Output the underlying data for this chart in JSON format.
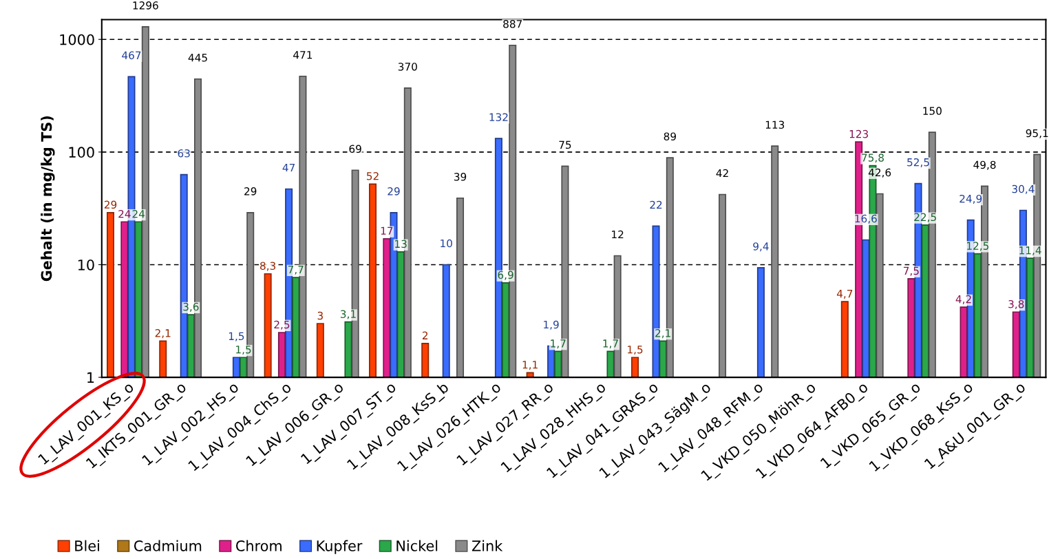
{
  "chart_data": {
    "type": "bar",
    "ylabel": "Gehalt (in mg/kg TS)",
    "log": true,
    "ylim": [
      1,
      1500
    ],
    "yticks": [
      1,
      10,
      100,
      1000
    ],
    "grid": "y",
    "legend": "bottom",
    "data_labels": true,
    "categories": [
      "1_LAV_001_KS_o",
      "1_IKTS_001_GR_o",
      "1_LAV_002_HS_o",
      "1_LAV_004_ChS_o",
      "1_LAV_006_GR_o",
      "1_LAV_007_ST_o",
      "1_LAV_008_KsS_b",
      "1_LAV_026_HTK_o",
      "1_LAV_027_RR_o",
      "1_LAV_028_HHS_o",
      "1_LAV_041_GRAS_o",
      "1_LAV_043_SägM_o",
      "1_LAV_048_RFM_o",
      "1_VKD_050_MöhR_o",
      "1_VKD_064_AFB0_o",
      "1_VKD_065_GR_o",
      "1_VKD_068_KsS_o",
      "1_A&U_001_GR_o"
    ],
    "series": [
      {
        "name": "Blei",
        "color": "#ff4000",
        "values": [
          29,
          2.1,
          null,
          8.3,
          3,
          52,
          2,
          null,
          1.1,
          null,
          1.5,
          null,
          null,
          null,
          4.7,
          null,
          null,
          null
        ],
        "value_labels": [
          "29",
          "2,1",
          null,
          "8,3",
          "3",
          "52",
          "2",
          null,
          "1,1",
          null,
          "1,5",
          null,
          null,
          null,
          "4,7",
          null,
          null,
          null
        ]
      },
      {
        "name": "Cadmium",
        "color": "#b07818",
        "values": [
          null,
          null,
          null,
          null,
          null,
          null,
          null,
          null,
          null,
          null,
          null,
          null,
          null,
          null,
          null,
          null,
          null,
          null
        ],
        "value_labels": [
          null,
          null,
          null,
          null,
          null,
          null,
          null,
          null,
          null,
          null,
          null,
          null,
          null,
          null,
          null,
          null,
          null,
          null
        ]
      },
      {
        "name": "Chrom",
        "color": "#e0208a",
        "values": [
          24,
          null,
          null,
          2.5,
          null,
          17,
          null,
          null,
          null,
          null,
          null,
          null,
          null,
          null,
          123,
          7.5,
          4.2,
          3.8
        ],
        "value_labels": [
          "24",
          null,
          null,
          "2,5",
          null,
          "17",
          null,
          null,
          null,
          null,
          null,
          null,
          null,
          null,
          "123",
          "7,5",
          "4,2",
          "3,8"
        ]
      },
      {
        "name": "Kupfer",
        "color": "#3a6cff",
        "values": [
          467,
          63,
          1.5,
          47,
          null,
          29,
          10,
          132,
          1.9,
          null,
          22,
          null,
          9.4,
          null,
          16.6,
          52.5,
          24.9,
          30.4
        ],
        "value_labels": [
          "467",
          "63",
          "1,5",
          "47",
          null,
          "29",
          "10",
          "132",
          "1,9",
          null,
          "22",
          null,
          "9,4",
          null,
          "16,6",
          "52,5",
          "24,9",
          "30,4"
        ]
      },
      {
        "name": "Nickel",
        "color": "#2aa84a",
        "values": [
          24,
          3.6,
          1.5,
          7.7,
          3.1,
          13,
          null,
          6.9,
          1.7,
          1.7,
          2.1,
          null,
          null,
          null,
          75.8,
          22.5,
          12.5,
          11.4
        ],
        "value_labels": [
          "24",
          "3,6",
          "1,5",
          "7,7",
          "3,1",
          "13",
          null,
          "6,9",
          "1,7",
          "1,7",
          "2,1",
          null,
          null,
          null,
          "75,8",
          "22,5",
          "12,5",
          "11,4"
        ]
      },
      {
        "name": "Zink",
        "color": "#8a8a8a",
        "values": [
          1296,
          445,
          29,
          471,
          69,
          370,
          39,
          887,
          75,
          12,
          89,
          42,
          113,
          null,
          42.6,
          150,
          49.8,
          95.1
        ],
        "value_labels": [
          "1296",
          "445",
          "29",
          "471",
          "69",
          "370",
          "39",
          "887",
          "75",
          "12",
          "89",
          "42",
          "113",
          null,
          "42,6",
          "150",
          "49,8",
          "95,1"
        ]
      }
    ]
  }
}
